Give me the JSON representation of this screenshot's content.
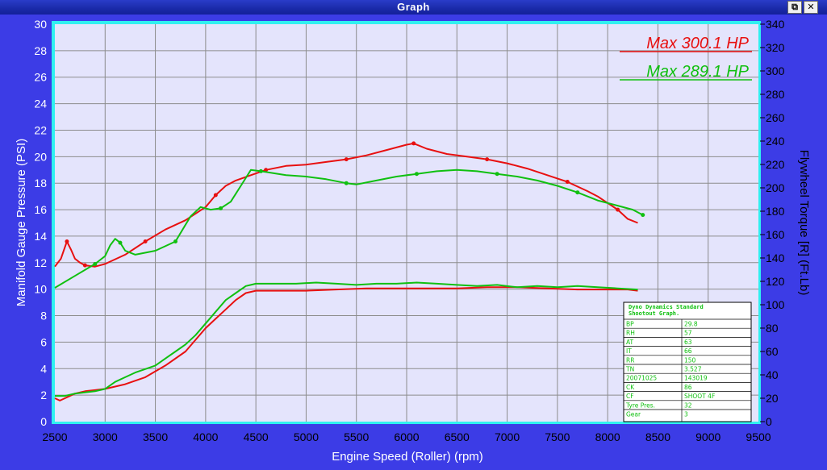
{
  "window": {
    "title": "Graph",
    "restore_icon": "restore-icon",
    "close_icon": "close-icon"
  },
  "chart_data": {
    "type": "line",
    "xlabel": "Engine Speed (Roller) (rpm)",
    "ylabel_left": "Manifold Gauge Pressure (PSI)",
    "ylabel_right": "Flywheel Torque [R] (Ft.Lb)",
    "xlim": [
      2500,
      9500
    ],
    "x_ticks": [
      2500,
      3000,
      3500,
      4000,
      4500,
      5000,
      5500,
      6000,
      6500,
      7000,
      7500,
      8000,
      8500,
      9000,
      9500
    ],
    "ylim_left": [
      0,
      30
    ],
    "y_ticks_left": [
      0,
      2,
      4,
      6,
      8,
      10,
      12,
      14,
      16,
      18,
      20,
      22,
      24,
      26,
      28,
      30
    ],
    "ylim_right": [
      0,
      340
    ],
    "y_ticks_right": [
      0,
      20,
      40,
      60,
      80,
      100,
      120,
      140,
      160,
      180,
      200,
      220,
      240,
      260,
      280,
      300,
      320,
      340
    ],
    "grid": true,
    "colors": {
      "red": "#e81010",
      "green": "#10c010",
      "plot_bg": "#e4e4fc",
      "frame": "#30f0f0",
      "grid": "#8c8c8c"
    },
    "annotations": [
      {
        "text": "Max 300.1 HP",
        "color": "#e81010"
      },
      {
        "text": "Max 289.1 HP",
        "color": "#10c010"
      }
    ],
    "series": [
      {
        "color": "#e81010",
        "axis": "left",
        "x": [
          2500,
          2560,
          2620,
          2660,
          2700,
          2750,
          2800,
          2900,
          3000,
          3200,
          3400,
          3600,
          3800,
          4000,
          4100,
          4200,
          4300,
          4450,
          4600,
          4800,
          5000,
          5200,
          5400,
          5600,
          5800,
          6000,
          6070,
          6200,
          6400,
          6600,
          6800,
          7000,
          7200,
          7400,
          7600,
          7800,
          7900,
          8000,
          8100,
          8200,
          8300
        ],
        "y": [
          11.7,
          12.3,
          13.6,
          13.0,
          12.3,
          12.0,
          11.8,
          11.7,
          11.9,
          12.6,
          13.6,
          14.5,
          15.2,
          16.2,
          17.1,
          17.8,
          18.2,
          18.6,
          19.0,
          19.3,
          19.4,
          19.6,
          19.8,
          20.1,
          20.5,
          20.9,
          21.0,
          20.6,
          20.2,
          20.0,
          19.8,
          19.5,
          19.1,
          18.6,
          18.1,
          17.4,
          17.0,
          16.5,
          16.0,
          15.3,
          15.0
        ]
      },
      {
        "color": "#10c010",
        "axis": "left",
        "x": [
          2500,
          2700,
          2900,
          3000,
          3050,
          3100,
          3150,
          3200,
          3300,
          3500,
          3700,
          3850,
          3950,
          4050,
          4150,
          4250,
          4350,
          4450,
          4550,
          4800,
          5000,
          5200,
          5400,
          5500,
          5700,
          5900,
          6100,
          6300,
          6500,
          6700,
          6900,
          7100,
          7300,
          7500,
          7700,
          7900,
          8100,
          8250,
          8350
        ],
        "y": [
          10.1,
          11.0,
          11.9,
          12.5,
          13.3,
          13.8,
          13.5,
          12.9,
          12.6,
          12.9,
          13.6,
          15.5,
          16.2,
          16.0,
          16.1,
          16.6,
          17.8,
          19.0,
          18.9,
          18.6,
          18.5,
          18.3,
          18.0,
          17.9,
          18.2,
          18.5,
          18.7,
          18.9,
          19.0,
          18.9,
          18.7,
          18.5,
          18.2,
          17.8,
          17.3,
          16.7,
          16.3,
          16.0,
          15.6
        ]
      },
      {
        "color": "#e81010",
        "axis": "right",
        "x": [
          2500,
          2550,
          2600,
          2700,
          2800,
          2900,
          3000,
          3200,
          3400,
          3600,
          3800,
          3900,
          4000,
          4100,
          4200,
          4300,
          4400,
          4500,
          4700,
          5000,
          5300,
          5600,
          5900,
          6200,
          6500,
          6800,
          7100,
          7400,
          7700,
          8000,
          8200,
          8300
        ],
        "y": [
          20,
          18,
          20,
          24,
          26,
          27,
          28,
          32,
          38,
          48,
          60,
          70,
          80,
          88,
          96,
          104,
          110,
          112,
          112,
          112,
          113,
          114,
          114,
          114,
          114,
          115,
          115,
          114,
          113,
          113,
          113,
          112
        ]
      },
      {
        "color": "#10c010",
        "axis": "right",
        "x": [
          2500,
          2600,
          2700,
          2800,
          2900,
          3000,
          3100,
          3200,
          3300,
          3400,
          3500,
          3600,
          3700,
          3800,
          3900,
          4000,
          4100,
          4200,
          4300,
          4400,
          4450,
          4500,
          4700,
          4900,
          5100,
          5300,
          5500,
          5700,
          5900,
          6100,
          6300,
          6500,
          6700,
          6900,
          7100,
          7300,
          7500,
          7700,
          7900,
          8100,
          8300
        ],
        "y": [
          22,
          22,
          24,
          25,
          26,
          28,
          34,
          38,
          42,
          45,
          48,
          54,
          60,
          66,
          74,
          84,
          94,
          104,
          110,
          116,
          117,
          118,
          118,
          118,
          119,
          118,
          117,
          118,
          118,
          119,
          118,
          117,
          116,
          117,
          115,
          116,
          115,
          116,
          115,
          114,
          113
        ]
      }
    ],
    "info_box": {
      "title": "Dyno Dynamics Standard Shootout Graph.",
      "rows": [
        [
          "BP",
          "29.8"
        ],
        [
          "RH",
          "57"
        ],
        [
          "AT",
          "63"
        ],
        [
          "IT",
          "66"
        ],
        [
          "RR",
          "150"
        ],
        [
          "TN",
          "3.527"
        ],
        [
          "20071025",
          "143019"
        ],
        [
          "CK",
          "86"
        ],
        [
          "CF",
          "SHOOT 4F"
        ],
        [
          "Tyre Pres.",
          "32"
        ],
        [
          "Gear",
          "3"
        ]
      ]
    }
  }
}
